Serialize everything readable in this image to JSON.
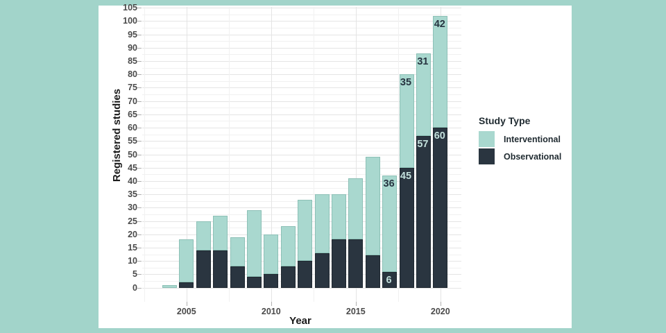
{
  "chart_data": {
    "type": "bar",
    "stacked": true,
    "title": "",
    "xlabel": "Year",
    "ylabel": "Registered studies",
    "ylim": [
      0,
      105
    ],
    "ytick_step": 5,
    "xticks": [
      2005,
      2010,
      2015,
      2020
    ],
    "grid": "major+minor",
    "legend": {
      "title": "Study Type",
      "position": "right",
      "entries": [
        "Interventional",
        "Observational"
      ]
    },
    "categories": [
      2004,
      2005,
      2006,
      2007,
      2008,
      2009,
      2010,
      2011,
      2012,
      2013,
      2014,
      2015,
      2016,
      2017,
      2018,
      2019,
      2020
    ],
    "series": [
      {
        "name": "Interventional",
        "color": "#a9d8cf",
        "values": [
          1,
          16,
          11,
          13,
          11,
          25,
          15,
          15,
          23,
          22,
          17,
          23,
          37,
          36,
          35,
          31,
          42
        ]
      },
      {
        "name": "Observational",
        "color": "#2a3540",
        "values": [
          0,
          2,
          14,
          14,
          8,
          4,
          5,
          8,
          10,
          13,
          18,
          18,
          12,
          6,
          45,
          57,
          60
        ]
      }
    ],
    "totals": [
      1,
      18,
      25,
      27,
      19,
      29,
      20,
      23,
      33,
      35,
      35,
      41,
      49,
      42,
      80,
      88,
      102
    ],
    "bar_labels": [
      {
        "category": 2017,
        "series": "Observational",
        "value": 6
      },
      {
        "category": 2017,
        "series": "Interventional",
        "value": 36
      },
      {
        "category": 2018,
        "series": "Observational",
        "value": 45
      },
      {
        "category": 2018,
        "series": "Interventional",
        "value": 35
      },
      {
        "category": 2019,
        "series": "Observational",
        "value": 57
      },
      {
        "category": 2019,
        "series": "Interventional",
        "value": 31
      },
      {
        "category": 2020,
        "series": "Observational",
        "value": 60
      },
      {
        "category": 2020,
        "series": "Interventional",
        "value": 42
      }
    ]
  },
  "colors": {
    "page_background": "#a2d4ca",
    "figure_background": "#ffffff",
    "interventional_fill": "#a9d8cf",
    "interventional_border": "#8cc0b6",
    "observational_fill": "#2a3540",
    "observational_border": "#1f2830",
    "grid_major": "#e4e4e4",
    "grid_minor": "#f1f1f1",
    "tick_mark": "#b0b0b0",
    "tick_text": "#4a4a4a",
    "axis_title_text": "#1a1a1a",
    "legend_text": "#1f2a30",
    "label_on_light": "#263440",
    "label_on_dark": "#c3e0dc"
  }
}
